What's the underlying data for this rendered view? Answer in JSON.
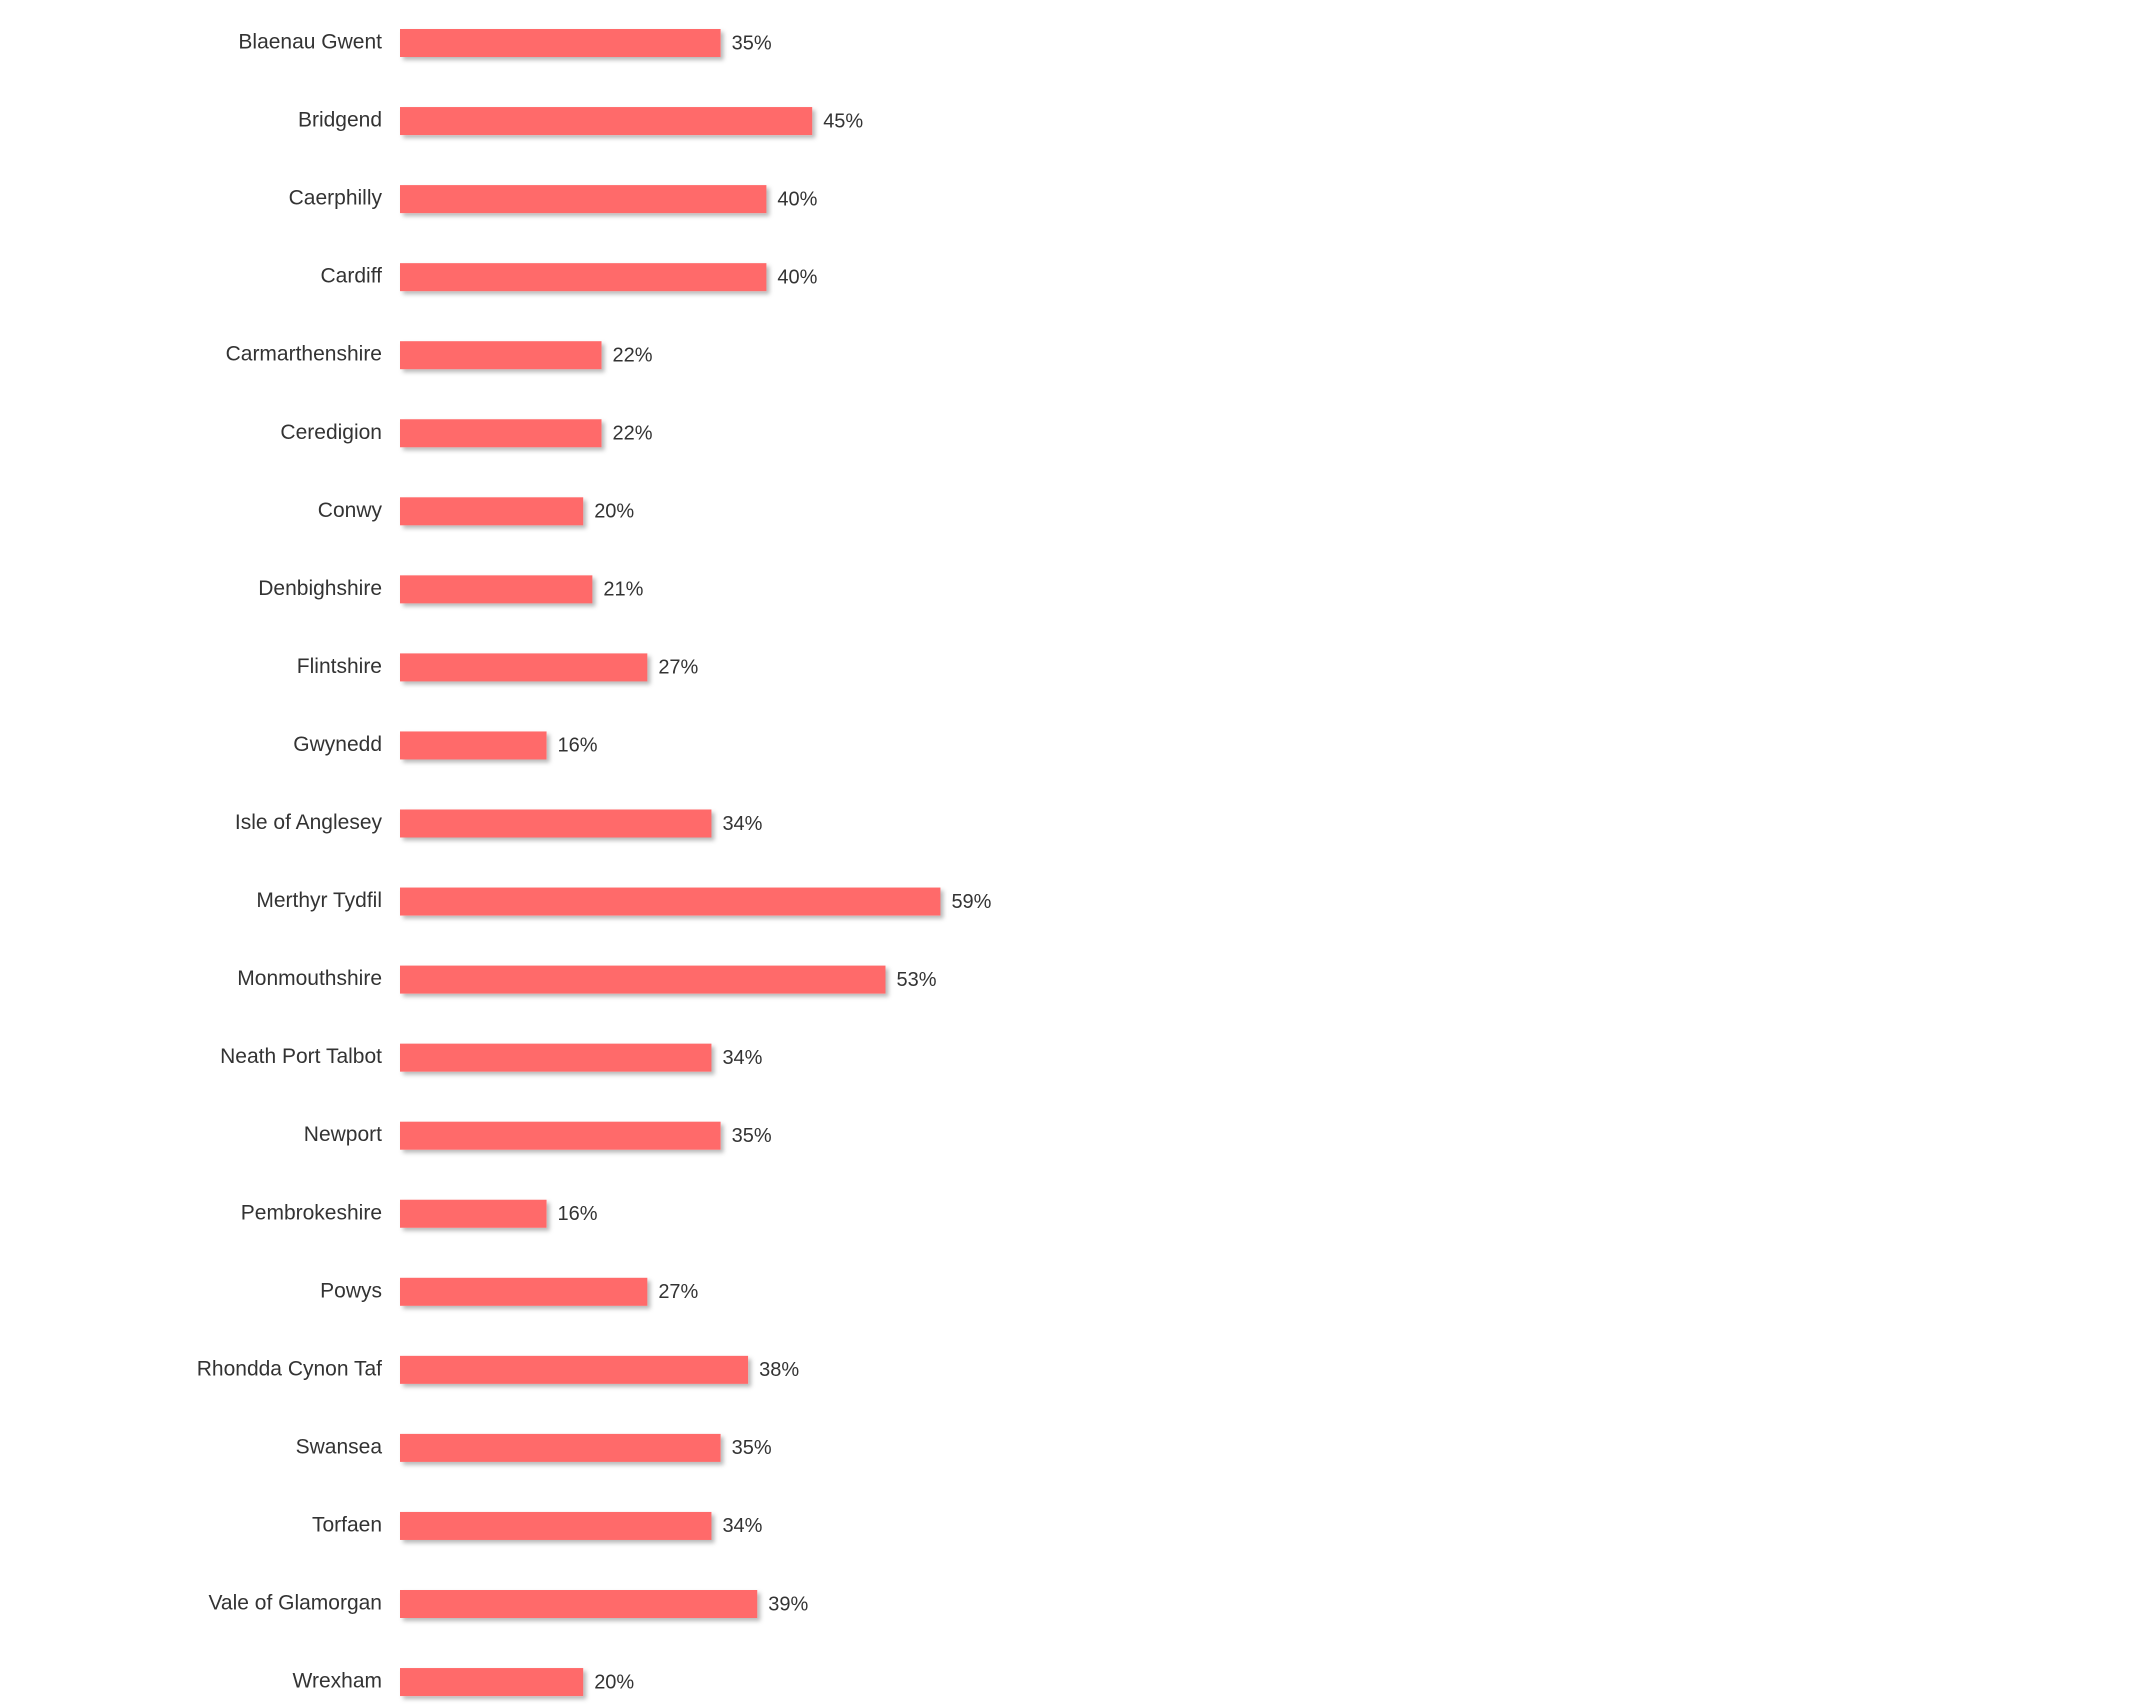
{
  "chart_data": {
    "type": "bar",
    "orientation": "horizontal",
    "title": "",
    "xlabel": "",
    "ylabel": "",
    "xlim": [
      0,
      100
    ],
    "grid": false,
    "legend": "none",
    "bar_color": "#FF6B6B",
    "categories": [
      "Blaenau Gwent",
      "Bridgend",
      "Caerphilly",
      "Cardiff",
      "Carmarthenshire",
      "Ceredigion",
      "Conwy",
      "Denbighshire",
      "Flintshire",
      "Gwynedd",
      "Isle of Anglesey",
      "Merthyr Tydfil",
      "Monmouthshire",
      "Neath Port Talbot",
      "Newport",
      "Pembrokeshire",
      "Powys",
      "Rhondda Cynon Taf",
      "Swansea",
      "Torfaen",
      "Vale of Glamorgan",
      "Wrexham"
    ],
    "values": [
      35,
      45,
      40,
      40,
      22,
      22,
      20,
      21,
      27,
      16,
      34,
      59,
      53,
      34,
      35,
      16,
      27,
      38,
      35,
      34,
      39,
      20
    ],
    "value_labels": [
      "35%",
      "45%",
      "40%",
      "40%",
      "22%",
      "22%",
      "20%",
      "21%",
      "27%",
      "16%",
      "34%",
      "59%",
      "53%",
      "34%",
      "35%",
      "16%",
      "27%",
      "38%",
      "35%",
      "34%",
      "39%",
      "20%"
    ]
  }
}
